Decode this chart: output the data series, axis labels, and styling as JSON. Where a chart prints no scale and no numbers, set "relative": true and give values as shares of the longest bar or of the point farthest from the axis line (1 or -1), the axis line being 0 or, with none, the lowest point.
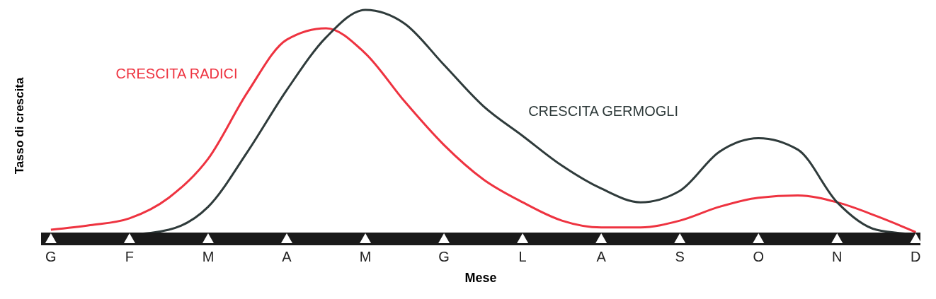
{
  "chart_data": {
    "type": "line",
    "relative": true,
    "xlabel": "Mese",
    "ylabel": "Tasso di crescita",
    "categories": [
      "G",
      null,
      "F",
      null,
      "M",
      null,
      "A",
      null,
      "M",
      null,
      "G",
      null,
      "L",
      null,
      "A",
      null,
      "S",
      null,
      "O",
      null,
      "N",
      null,
      "D"
    ],
    "series": [
      {
        "name": "CRESCITA RADICI",
        "color": "#ee3340",
        "values": [
          0.04,
          0.06,
          0.09,
          0.18,
          0.35,
          0.64,
          0.87,
          0.92,
          0.81,
          0.6,
          0.41,
          0.26,
          0.16,
          0.08,
          0.05,
          0.05,
          0.08,
          0.14,
          0.18,
          0.19,
          0.16,
          0.1,
          0.03
        ]
      },
      {
        "name": "CRESCITA GERMOGLI",
        "color": "#2f3b3b",
        "values": [
          0.02,
          0.02,
          0.02,
          0.04,
          0.14,
          0.38,
          0.65,
          0.88,
          1.0,
          0.94,
          0.76,
          0.58,
          0.45,
          0.32,
          0.22,
          0.16,
          0.21,
          0.38,
          0.44,
          0.39,
          0.16,
          0.04,
          0.02
        ]
      }
    ],
    "grid": false,
    "legend": false,
    "marker": "none",
    "line_style": "solid"
  }
}
